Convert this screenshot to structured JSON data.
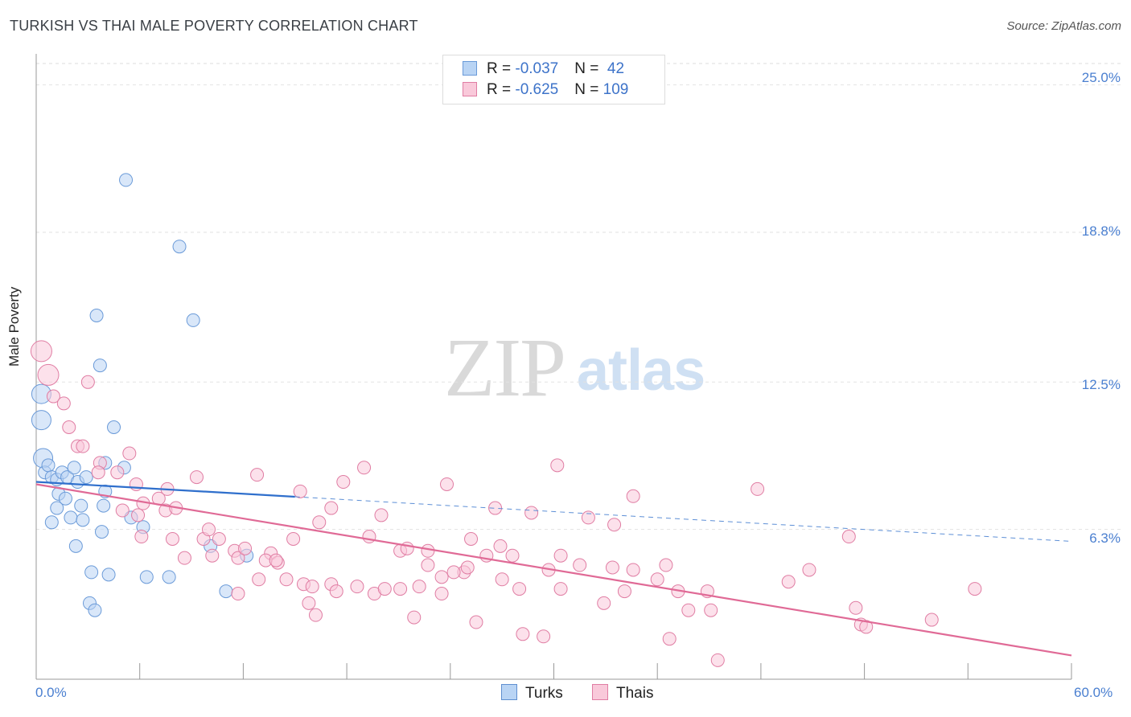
{
  "title": "TURKISH VS THAI MALE POVERTY CORRELATION CHART",
  "source": "Source: ZipAtlas.com",
  "watermark": {
    "zip": "ZIP",
    "atlas": "atlas"
  },
  "legend": {
    "rows": [
      {
        "r_label": "R = ",
        "r_value": "-0.037",
        "n_label": "N = ",
        "n_value": " 42",
        "color": "#a9c8f0",
        "border": "#6a9ad8"
      },
      {
        "r_label": "R = ",
        "r_value": "-0.625",
        "n_label": "N = ",
        "n_value": "109",
        "color": "#f6bfd2",
        "border": "#e585a8"
      }
    ]
  },
  "bottom_legend": [
    {
      "label": "Turks",
      "color": "#b9d4f4",
      "border": "#5f8fd0"
    },
    {
      "label": "Thais",
      "color": "#f9c9da",
      "border": "#e07da3"
    }
  ],
  "chart_data": {
    "type": "scatter",
    "title": "TURKISH VS THAI MALE POVERTY CORRELATION CHART",
    "xlabel": "",
    "ylabel": "Male Poverty",
    "xlim": [
      0,
      60
    ],
    "ylim": [
      0,
      25.9
    ],
    "x_ticks": [
      "0.0%",
      "60.0%"
    ],
    "y_ticks": [
      {
        "value": 6.3,
        "label": "6.3%"
      },
      {
        "value": 12.5,
        "label": "12.5%"
      },
      {
        "value": 18.8,
        "label": "18.8%"
      },
      {
        "value": 25.0,
        "label": "25.0%"
      }
    ],
    "grid": true,
    "series": [
      {
        "name": "Turks",
        "color": "#6a9ad8",
        "fill": "#b9d4f4",
        "trend": {
          "x0": 0,
          "y0": 8.3,
          "x1": 60,
          "y1": 5.8,
          "solid_until": 15
        },
        "points": [
          [
            5.2,
            21.0
          ],
          [
            8.3,
            18.2
          ],
          [
            3.5,
            15.3
          ],
          [
            9.1,
            15.1
          ],
          [
            3.7,
            13.2
          ],
          [
            0.3,
            12.0
          ],
          [
            0.3,
            10.9
          ],
          [
            4.5,
            10.6
          ],
          [
            0.4,
            9.3
          ],
          [
            0.5,
            8.7
          ],
          [
            0.7,
            9.0
          ],
          [
            0.9,
            8.5
          ],
          [
            1.2,
            8.4
          ],
          [
            1.5,
            8.7
          ],
          [
            1.8,
            8.5
          ],
          [
            2.2,
            8.9
          ],
          [
            2.4,
            8.3
          ],
          [
            2.9,
            8.5
          ],
          [
            4.0,
            9.1
          ],
          [
            5.1,
            8.9
          ],
          [
            1.3,
            7.8
          ],
          [
            1.7,
            7.6
          ],
          [
            1.2,
            7.2
          ],
          [
            2.6,
            7.3
          ],
          [
            3.9,
            7.3
          ],
          [
            4.0,
            7.9
          ],
          [
            2.0,
            6.8
          ],
          [
            2.7,
            6.7
          ],
          [
            5.5,
            6.8
          ],
          [
            6.2,
            6.4
          ],
          [
            0.9,
            6.6
          ],
          [
            3.8,
            6.2
          ],
          [
            2.3,
            5.6
          ],
          [
            3.2,
            4.5
          ],
          [
            4.2,
            4.4
          ],
          [
            6.4,
            4.3
          ],
          [
            7.7,
            4.3
          ],
          [
            11.0,
            3.7
          ],
          [
            3.1,
            3.2
          ],
          [
            3.4,
            2.9
          ],
          [
            10.1,
            5.6
          ],
          [
            12.2,
            5.2
          ]
        ]
      },
      {
        "name": "Thais",
        "color": "#e07da3",
        "fill": "#f9c9da",
        "trend": {
          "x0": 0,
          "y0": 8.2,
          "x1": 60,
          "y1": 1.0
        },
        "points": [
          [
            0.3,
            13.8
          ],
          [
            0.7,
            12.8
          ],
          [
            1.0,
            11.9
          ],
          [
            1.6,
            11.6
          ],
          [
            3.0,
            12.5
          ],
          [
            1.9,
            10.6
          ],
          [
            2.4,
            9.8
          ],
          [
            2.7,
            9.8
          ],
          [
            5.4,
            9.5
          ],
          [
            3.7,
            9.1
          ],
          [
            3.6,
            8.7
          ],
          [
            4.7,
            8.7
          ],
          [
            5.8,
            8.2
          ],
          [
            7.6,
            8.0
          ],
          [
            9.3,
            8.5
          ],
          [
            12.8,
            8.6
          ],
          [
            15.3,
            7.9
          ],
          [
            17.8,
            8.3
          ],
          [
            19.0,
            8.9
          ],
          [
            23.8,
            8.2
          ],
          [
            30.2,
            9.0
          ],
          [
            34.6,
            7.7
          ],
          [
            41.8,
            8.0
          ],
          [
            6.2,
            7.4
          ],
          [
            7.1,
            7.6
          ],
          [
            7.5,
            7.1
          ],
          [
            8.1,
            7.2
          ],
          [
            5.0,
            7.1
          ],
          [
            5.9,
            6.9
          ],
          [
            16.4,
            6.6
          ],
          [
            17.1,
            7.2
          ],
          [
            20.0,
            6.9
          ],
          [
            26.6,
            7.2
          ],
          [
            28.7,
            7.0
          ],
          [
            32.0,
            6.8
          ],
          [
            33.5,
            6.5
          ],
          [
            6.1,
            6.0
          ],
          [
            7.9,
            5.9
          ],
          [
            9.7,
            5.9
          ],
          [
            10.6,
            5.9
          ],
          [
            10.0,
            6.3
          ],
          [
            11.5,
            5.4
          ],
          [
            13.6,
            5.3
          ],
          [
            14.9,
            5.9
          ],
          [
            19.3,
            6.0
          ],
          [
            21.1,
            5.4
          ],
          [
            21.5,
            5.5
          ],
          [
            25.2,
            5.9
          ],
          [
            26.9,
            5.6
          ],
          [
            27.6,
            5.2
          ],
          [
            30.4,
            5.2
          ],
          [
            8.6,
            5.1
          ],
          [
            10.2,
            5.2
          ],
          [
            11.7,
            5.1
          ],
          [
            12.1,
            5.5
          ],
          [
            13.3,
            5.0
          ],
          [
            14.0,
            4.9
          ],
          [
            22.7,
            4.8
          ],
          [
            24.8,
            4.5
          ],
          [
            29.7,
            4.6
          ],
          [
            31.5,
            4.8
          ],
          [
            33.4,
            4.7
          ],
          [
            34.6,
            4.6
          ],
          [
            36.5,
            4.8
          ],
          [
            12.9,
            4.2
          ],
          [
            14.5,
            4.2
          ],
          [
            15.5,
            4.0
          ],
          [
            17.1,
            4.0
          ],
          [
            16.0,
            3.9
          ],
          [
            18.6,
            3.9
          ],
          [
            22.2,
            3.9
          ],
          [
            23.5,
            4.3
          ],
          [
            24.2,
            4.5
          ],
          [
            25.0,
            4.7
          ],
          [
            27.0,
            4.2
          ],
          [
            36.0,
            4.2
          ],
          [
            43.6,
            4.1
          ],
          [
            44.8,
            4.6
          ],
          [
            19.6,
            3.6
          ],
          [
            20.2,
            3.8
          ],
          [
            21.1,
            3.8
          ],
          [
            23.5,
            3.6
          ],
          [
            28.0,
            3.8
          ],
          [
            30.4,
            3.8
          ],
          [
            34.1,
            3.7
          ],
          [
            37.2,
            3.7
          ],
          [
            38.9,
            3.7
          ],
          [
            54.4,
            3.8
          ],
          [
            11.7,
            3.6
          ],
          [
            15.8,
            3.2
          ],
          [
            17.4,
            3.7
          ],
          [
            32.9,
            3.2
          ],
          [
            37.8,
            2.9
          ],
          [
            39.1,
            2.9
          ],
          [
            47.5,
            3.0
          ],
          [
            16.2,
            2.7
          ],
          [
            21.9,
            2.6
          ],
          [
            25.5,
            2.4
          ],
          [
            47.8,
            2.3
          ],
          [
            48.1,
            2.2
          ],
          [
            51.9,
            2.5
          ],
          [
            28.2,
            1.9
          ],
          [
            29.4,
            1.8
          ],
          [
            36.7,
            1.7
          ],
          [
            39.5,
            0.8
          ],
          [
            47.1,
            6.0
          ],
          [
            13.9,
            5.0
          ],
          [
            22.7,
            5.4
          ],
          [
            26.1,
            5.2
          ]
        ]
      }
    ]
  }
}
